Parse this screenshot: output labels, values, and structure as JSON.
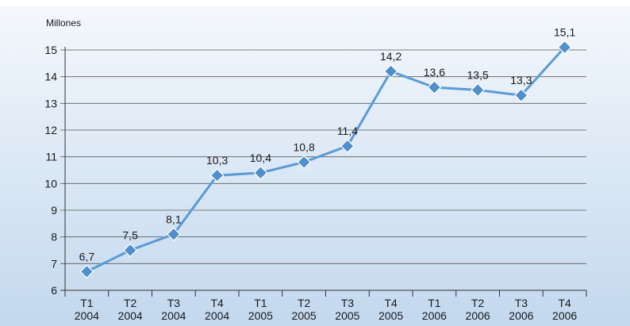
{
  "chart_data": {
    "type": "line",
    "ylabel": "Millones",
    "ylim": [
      6,
      15
    ],
    "yticks": [
      6,
      7,
      8,
      9,
      10,
      11,
      12,
      13,
      14,
      15
    ],
    "grid": true,
    "categories": [
      {
        "q": "T1",
        "year": "2004"
      },
      {
        "q": "T2",
        "year": "2004"
      },
      {
        "q": "T3",
        "year": "2004"
      },
      {
        "q": "T4",
        "year": "2004"
      },
      {
        "q": "T1",
        "year": "2005"
      },
      {
        "q": "T2",
        "year": "2005"
      },
      {
        "q": "T3",
        "year": "2005"
      },
      {
        "q": "T4",
        "year": "2005"
      },
      {
        "q": "T1",
        "year": "2006"
      },
      {
        "q": "T2",
        "year": "2006"
      },
      {
        "q": "T3",
        "year": "2006"
      },
      {
        "q": "T4",
        "year": "2006"
      }
    ],
    "values": [
      6.7,
      7.5,
      8.1,
      10.3,
      10.4,
      10.8,
      11.4,
      14.2,
      13.6,
      13.5,
      13.3,
      15.1
    ],
    "data_labels": [
      "6,7",
      "7,5",
      "8,1",
      "10,3",
      "10,4",
      "10,8",
      "11,4",
      "14,2",
      "13,6",
      "13,5",
      "13,3",
      "15,1"
    ],
    "colors": {
      "background_top": "#f4f8fc",
      "background_bottom": "#c3d8ee",
      "line": "#5b9bd5",
      "marker": "#4f8fcc",
      "marker_stroke": "#ffffff",
      "grid": "#5a5a5a",
      "axis": "#333333"
    }
  }
}
